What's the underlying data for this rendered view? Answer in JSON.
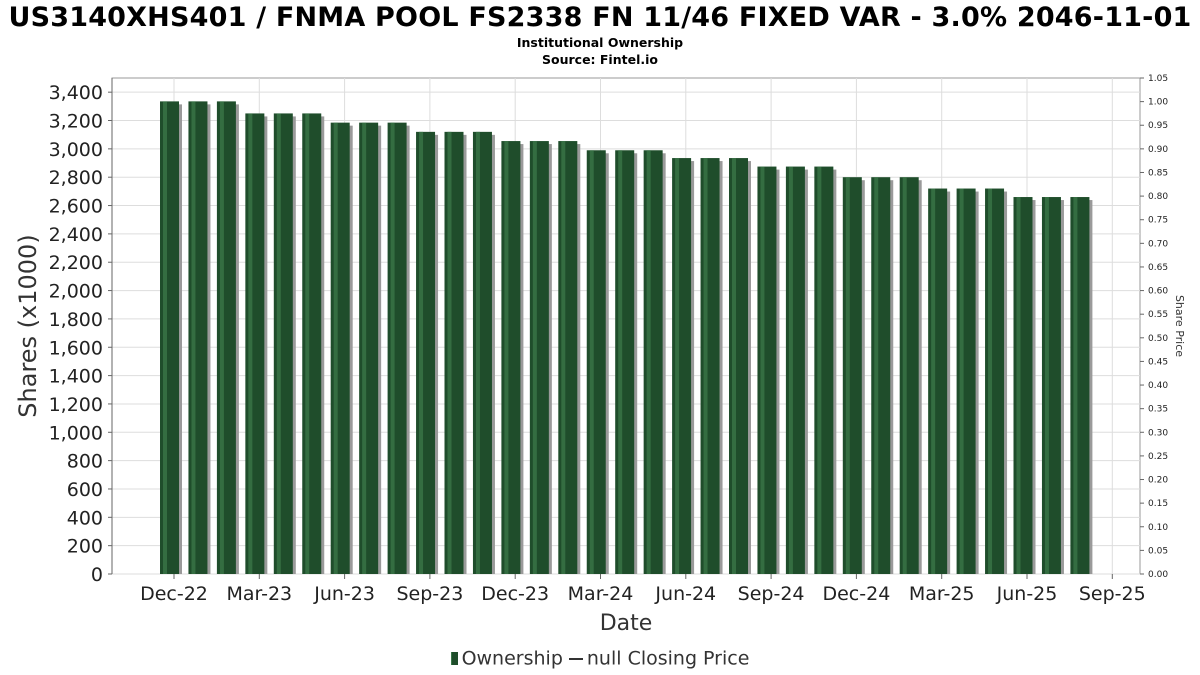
{
  "header": {
    "title": "US3140XHS401 / FNMA POOL FS2338 FN 11/46 FIXED VAR - 3.0% 2046-11-01",
    "subtitle": "Institutional Ownership",
    "source": "Source: Fintel.io"
  },
  "legend": {
    "ownership": "Ownership",
    "closing_price": "null Closing Price"
  },
  "colors": {
    "bar": "#1f4d2b",
    "bar_highlight": "#3d7a4c",
    "bar_shadow": "#9a9a9a",
    "grid": "#dddddd"
  },
  "chart_data": {
    "type": "bar",
    "title": "US3140XHS401 / FNMA POOL FS2338 FN 11/46 FIXED VAR - 3.0% 2046-11-01",
    "xlabel": "Date",
    "ylabel": "Shares (x1000)",
    "y2label": "Share Price",
    "ylim": [
      0,
      3500
    ],
    "y2lim": [
      0,
      1.05
    ],
    "yticks": [
      "0",
      "200",
      "400",
      "600",
      "800",
      "1,000",
      "1,200",
      "1,400",
      "1,600",
      "1,800",
      "2,000",
      "2,200",
      "2,400",
      "2,600",
      "2,800",
      "3,000",
      "3,200",
      "3,400"
    ],
    "y2ticks": [
      "0.00",
      "0.05",
      "0.10",
      "0.15",
      "0.20",
      "0.25",
      "0.30",
      "0.35",
      "0.40",
      "0.45",
      "0.50",
      "0.55",
      "0.60",
      "0.65",
      "0.70",
      "0.75",
      "0.80",
      "0.85",
      "0.90",
      "0.95",
      "1.00",
      "1.05"
    ],
    "xticks": [
      "Dec-22",
      "Mar-23",
      "Jun-23",
      "Sep-23",
      "Dec-23",
      "Mar-24",
      "Jun-24",
      "Sep-24",
      "Dec-24",
      "Mar-25",
      "Jun-25",
      "Sep-25"
    ],
    "grid": true,
    "legend_position": "bottom",
    "series": [
      {
        "name": "Ownership",
        "values": [
          3335,
          3335,
          3335,
          3250,
          3250,
          3250,
          3185,
          3185,
          3185,
          3120,
          3120,
          3120,
          3055,
          3055,
          3055,
          2990,
          2990,
          2990,
          2935,
          2935,
          2935,
          2875,
          2875,
          2875,
          2800,
          2800,
          2800,
          2720,
          2720,
          2720,
          2660,
          2660,
          2660
        ]
      }
    ]
  }
}
